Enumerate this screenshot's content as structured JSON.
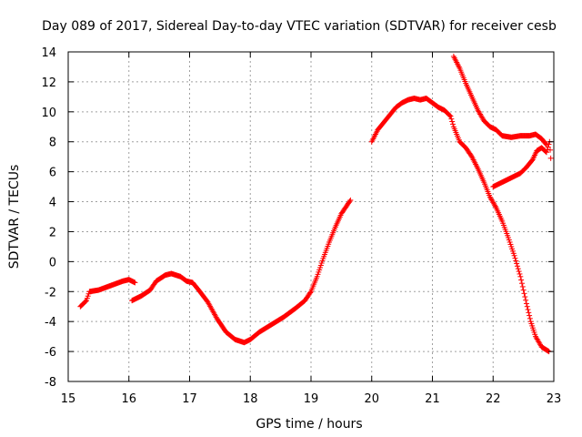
{
  "chart_data": {
    "type": "scatter",
    "title": "Day 089 of 2017, Sidereal Day-to-day VTEC variation (SDTVAR) for receiver cesb",
    "xlabel": "GPS time / hours",
    "ylabel": "SDTVAR / TECUs",
    "xlim": [
      15,
      23
    ],
    "ylim": [
      -8,
      14
    ],
    "xticks": [
      "15",
      "16",
      "17",
      "18",
      "19",
      "20",
      "21",
      "22",
      "23"
    ],
    "yticks": [
      "-8",
      "-6",
      "-4",
      "-2",
      "0",
      "2",
      "4",
      "6",
      "8",
      "10",
      "12",
      "14"
    ],
    "xtick_values": [
      15,
      16,
      17,
      18,
      19,
      20,
      21,
      22,
      23
    ],
    "ytick_values": [
      -8,
      -6,
      -4,
      -2,
      0,
      2,
      4,
      6,
      8,
      10,
      12,
      14
    ],
    "grid": true,
    "marker": "+",
    "color": "#ff0000",
    "series": [
      {
        "points": [
          [
            15.2,
            -3.0
          ],
          [
            15.3,
            -2.6
          ],
          [
            15.35,
            -2.0
          ],
          [
            15.5,
            -1.9
          ],
          [
            15.7,
            -1.6
          ],
          [
            15.9,
            -1.3
          ],
          [
            16.0,
            -1.2
          ],
          [
            16.1,
            -1.4
          ]
        ]
      },
      {
        "points": [
          [
            16.05,
            -2.6
          ],
          [
            16.2,
            -2.3
          ],
          [
            16.35,
            -1.9
          ],
          [
            16.45,
            -1.3
          ],
          [
            16.6,
            -0.9
          ],
          [
            16.7,
            -0.8
          ],
          [
            16.85,
            -1.0
          ],
          [
            16.95,
            -1.3
          ],
          [
            17.05,
            -1.4
          ],
          [
            17.15,
            -1.9
          ],
          [
            17.3,
            -2.7
          ],
          [
            17.45,
            -3.8
          ],
          [
            17.6,
            -4.7
          ],
          [
            17.75,
            -5.2
          ],
          [
            17.9,
            -5.4
          ],
          [
            18.0,
            -5.2
          ],
          [
            18.15,
            -4.7
          ],
          [
            18.35,
            -4.2
          ],
          [
            18.55,
            -3.7
          ],
          [
            18.75,
            -3.1
          ],
          [
            18.9,
            -2.6
          ],
          [
            19.0,
            -2.0
          ],
          [
            19.1,
            -1.0
          ],
          [
            19.2,
            0.2
          ],
          [
            19.3,
            1.3
          ],
          [
            19.4,
            2.3
          ],
          [
            19.5,
            3.2
          ],
          [
            19.65,
            4.1
          ]
        ]
      },
      {
        "points": [
          [
            20.0,
            8.0
          ],
          [
            20.1,
            8.8
          ],
          [
            20.2,
            9.3
          ],
          [
            20.3,
            9.8
          ],
          [
            20.4,
            10.3
          ],
          [
            20.5,
            10.6
          ],
          [
            20.6,
            10.8
          ],
          [
            20.7,
            10.9
          ],
          [
            20.8,
            10.8
          ],
          [
            20.9,
            10.9
          ],
          [
            21.0,
            10.6
          ],
          [
            21.1,
            10.3
          ],
          [
            21.2,
            10.1
          ],
          [
            21.3,
            9.7
          ],
          [
            21.35,
            9.0
          ],
          [
            21.45,
            8.0
          ],
          [
            21.55,
            7.6
          ],
          [
            21.65,
            7.0
          ],
          [
            21.75,
            6.2
          ],
          [
            21.85,
            5.3
          ],
          [
            21.95,
            4.3
          ],
          [
            22.05,
            3.6
          ],
          [
            22.15,
            2.7
          ],
          [
            22.25,
            1.6
          ],
          [
            22.35,
            0.4
          ],
          [
            22.45,
            -1.0
          ],
          [
            22.55,
            -2.8
          ],
          [
            22.62,
            -4.0
          ],
          [
            22.7,
            -5.0
          ],
          [
            22.8,
            -5.7
          ],
          [
            22.92,
            -6.0
          ]
        ]
      },
      {
        "points": [
          [
            21.35,
            13.7
          ],
          [
            21.45,
            12.9
          ],
          [
            21.55,
            11.9
          ],
          [
            21.65,
            11.0
          ],
          [
            21.75,
            10.1
          ],
          [
            21.85,
            9.4
          ],
          [
            21.95,
            9.0
          ],
          [
            22.05,
            8.8
          ],
          [
            22.15,
            8.4
          ],
          [
            22.3,
            8.3
          ],
          [
            22.45,
            8.4
          ],
          [
            22.6,
            8.4
          ],
          [
            22.7,
            8.5
          ],
          [
            22.8,
            8.2
          ],
          [
            22.88,
            7.8
          ]
        ]
      },
      {
        "points": [
          [
            22.0,
            5.0
          ],
          [
            22.15,
            5.3
          ],
          [
            22.3,
            5.6
          ],
          [
            22.45,
            5.9
          ],
          [
            22.55,
            6.3
          ],
          [
            22.65,
            6.8
          ],
          [
            22.72,
            7.4
          ],
          [
            22.8,
            7.6
          ],
          [
            22.88,
            7.3
          ],
          [
            22.93,
            8.0
          ],
          [
            22.95,
            6.9
          ]
        ]
      }
    ]
  }
}
